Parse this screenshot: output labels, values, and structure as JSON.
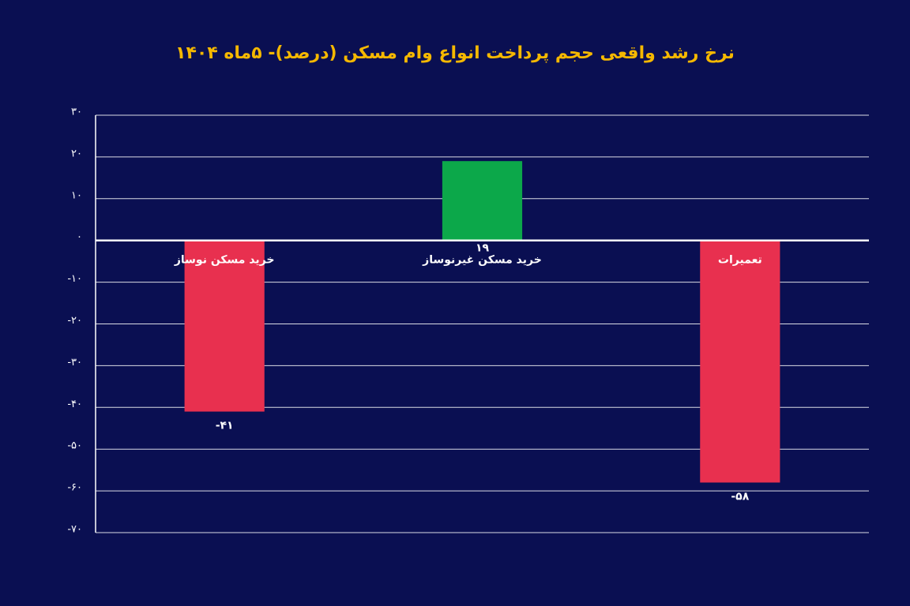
{
  "chart_data": {
    "type": "bar",
    "title": "نرخ رشد واقعی حجم پرداخت انواع وام مسکن (درصد)- ۵ماه ۱۴۰۴",
    "categories": [
      "خرید مسکن نوساز",
      "خرید مسکن غیرنوساز",
      "تعمیرات"
    ],
    "values": [
      -41,
      19,
      -58
    ],
    "value_labels": [
      "-۴۱",
      "۱۹",
      "-۵۸"
    ],
    "colors": [
      "#e8304f",
      "#0ca84a",
      "#e8304f"
    ],
    "ylim": [
      -70,
      30
    ],
    "yticks": [
      {
        "value": 30,
        "label": "۳۰"
      },
      {
        "value": 20,
        "label": "۲۰"
      },
      {
        "value": 10,
        "label": "۱۰"
      },
      {
        "value": 0,
        "label": "۰"
      },
      {
        "value": -10,
        "label": "-۱۰"
      },
      {
        "value": -20,
        "label": "-۲۰"
      },
      {
        "value": -30,
        "label": "-۳۰"
      },
      {
        "value": -40,
        "label": "-۴۰"
      },
      {
        "value": -50,
        "label": "-۵۰"
      },
      {
        "value": -60,
        "label": "-۶۰"
      },
      {
        "value": -70,
        "label": "-۷۰"
      }
    ],
    "grid": true
  }
}
